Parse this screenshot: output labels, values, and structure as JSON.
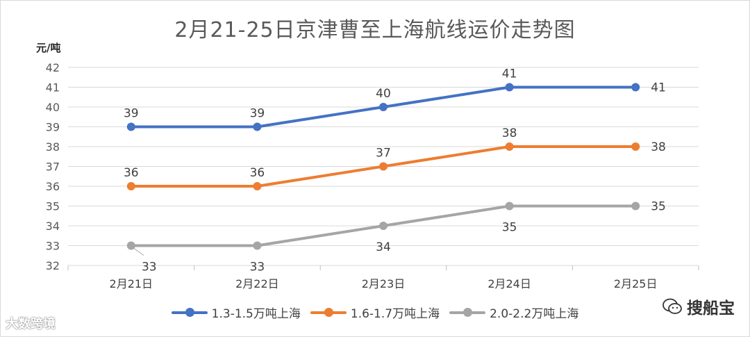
{
  "chart_data": {
    "type": "line",
    "title": "2月21-25日京津曹至上海航线运价走势图",
    "ylabel": "元/吨",
    "xlabel": "",
    "ylim": [
      32,
      42
    ],
    "yticks": [
      32,
      33,
      34,
      35,
      36,
      37,
      38,
      39,
      40,
      41,
      42
    ],
    "categories": [
      "2月21日",
      "2月22日",
      "2月23日",
      "2月24日",
      "2月25日"
    ],
    "grid": true,
    "legend_position": "bottom",
    "series": [
      {
        "name": "1.3-1.5万吨上海",
        "color": "#4472c4",
        "values": [
          39,
          39,
          40,
          41,
          41
        ]
      },
      {
        "name": "1.6-1.7万吨上海",
        "color": "#ed7d31",
        "values": [
          36,
          36,
          37,
          38,
          38
        ]
      },
      {
        "name": "2.0-2.2万吨上海",
        "color": "#a5a5a5",
        "values": [
          33,
          33,
          34,
          35,
          35
        ]
      }
    ]
  },
  "watermarks": {
    "left": "大数跨境",
    "right": "搜船宝"
  }
}
